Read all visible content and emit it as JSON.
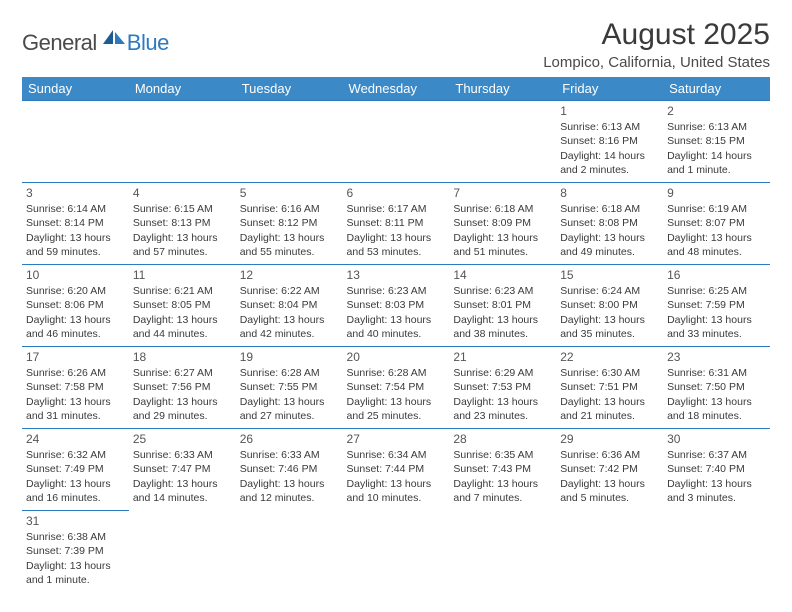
{
  "logo": {
    "part1": "General",
    "part2": "Blue"
  },
  "title": "August 2025",
  "location": "Lompico, California, United States",
  "header_bg": "#3b89c7",
  "rule_color": "#2c7ac0",
  "weekdays": [
    "Sunday",
    "Monday",
    "Tuesday",
    "Wednesday",
    "Thursday",
    "Friday",
    "Saturday"
  ],
  "weeks": [
    [
      null,
      null,
      null,
      null,
      null,
      {
        "n": "1",
        "sr": "6:13 AM",
        "ss": "8:16 PM",
        "dl": "14 hours and 2 minutes."
      },
      {
        "n": "2",
        "sr": "6:13 AM",
        "ss": "8:15 PM",
        "dl": "14 hours and 1 minute."
      }
    ],
    [
      {
        "n": "3",
        "sr": "6:14 AM",
        "ss": "8:14 PM",
        "dl": "13 hours and 59 minutes."
      },
      {
        "n": "4",
        "sr": "6:15 AM",
        "ss": "8:13 PM",
        "dl": "13 hours and 57 minutes."
      },
      {
        "n": "5",
        "sr": "6:16 AM",
        "ss": "8:12 PM",
        "dl": "13 hours and 55 minutes."
      },
      {
        "n": "6",
        "sr": "6:17 AM",
        "ss": "8:11 PM",
        "dl": "13 hours and 53 minutes."
      },
      {
        "n": "7",
        "sr": "6:18 AM",
        "ss": "8:09 PM",
        "dl": "13 hours and 51 minutes."
      },
      {
        "n": "8",
        "sr": "6:18 AM",
        "ss": "8:08 PM",
        "dl": "13 hours and 49 minutes."
      },
      {
        "n": "9",
        "sr": "6:19 AM",
        "ss": "8:07 PM",
        "dl": "13 hours and 48 minutes."
      }
    ],
    [
      {
        "n": "10",
        "sr": "6:20 AM",
        "ss": "8:06 PM",
        "dl": "13 hours and 46 minutes."
      },
      {
        "n": "11",
        "sr": "6:21 AM",
        "ss": "8:05 PM",
        "dl": "13 hours and 44 minutes."
      },
      {
        "n": "12",
        "sr": "6:22 AM",
        "ss": "8:04 PM",
        "dl": "13 hours and 42 minutes."
      },
      {
        "n": "13",
        "sr": "6:23 AM",
        "ss": "8:03 PM",
        "dl": "13 hours and 40 minutes."
      },
      {
        "n": "14",
        "sr": "6:23 AM",
        "ss": "8:01 PM",
        "dl": "13 hours and 38 minutes."
      },
      {
        "n": "15",
        "sr": "6:24 AM",
        "ss": "8:00 PM",
        "dl": "13 hours and 35 minutes."
      },
      {
        "n": "16",
        "sr": "6:25 AM",
        "ss": "7:59 PM",
        "dl": "13 hours and 33 minutes."
      }
    ],
    [
      {
        "n": "17",
        "sr": "6:26 AM",
        "ss": "7:58 PM",
        "dl": "13 hours and 31 minutes."
      },
      {
        "n": "18",
        "sr": "6:27 AM",
        "ss": "7:56 PM",
        "dl": "13 hours and 29 minutes."
      },
      {
        "n": "19",
        "sr": "6:28 AM",
        "ss": "7:55 PM",
        "dl": "13 hours and 27 minutes."
      },
      {
        "n": "20",
        "sr": "6:28 AM",
        "ss": "7:54 PM",
        "dl": "13 hours and 25 minutes."
      },
      {
        "n": "21",
        "sr": "6:29 AM",
        "ss": "7:53 PM",
        "dl": "13 hours and 23 minutes."
      },
      {
        "n": "22",
        "sr": "6:30 AM",
        "ss": "7:51 PM",
        "dl": "13 hours and 21 minutes."
      },
      {
        "n": "23",
        "sr": "6:31 AM",
        "ss": "7:50 PM",
        "dl": "13 hours and 18 minutes."
      }
    ],
    [
      {
        "n": "24",
        "sr": "6:32 AM",
        "ss": "7:49 PM",
        "dl": "13 hours and 16 minutes."
      },
      {
        "n": "25",
        "sr": "6:33 AM",
        "ss": "7:47 PM",
        "dl": "13 hours and 14 minutes."
      },
      {
        "n": "26",
        "sr": "6:33 AM",
        "ss": "7:46 PM",
        "dl": "13 hours and 12 minutes."
      },
      {
        "n": "27",
        "sr": "6:34 AM",
        "ss": "7:44 PM",
        "dl": "13 hours and 10 minutes."
      },
      {
        "n": "28",
        "sr": "6:35 AM",
        "ss": "7:43 PM",
        "dl": "13 hours and 7 minutes."
      },
      {
        "n": "29",
        "sr": "6:36 AM",
        "ss": "7:42 PM",
        "dl": "13 hours and 5 minutes."
      },
      {
        "n": "30",
        "sr": "6:37 AM",
        "ss": "7:40 PM",
        "dl": "13 hours and 3 minutes."
      }
    ],
    [
      {
        "n": "31",
        "sr": "6:38 AM",
        "ss": "7:39 PM",
        "dl": "13 hours and 1 minute."
      },
      null,
      null,
      null,
      null,
      null,
      null
    ]
  ],
  "labels": {
    "sunrise": "Sunrise: ",
    "sunset": "Sunset: ",
    "daylight": "Daylight: "
  }
}
